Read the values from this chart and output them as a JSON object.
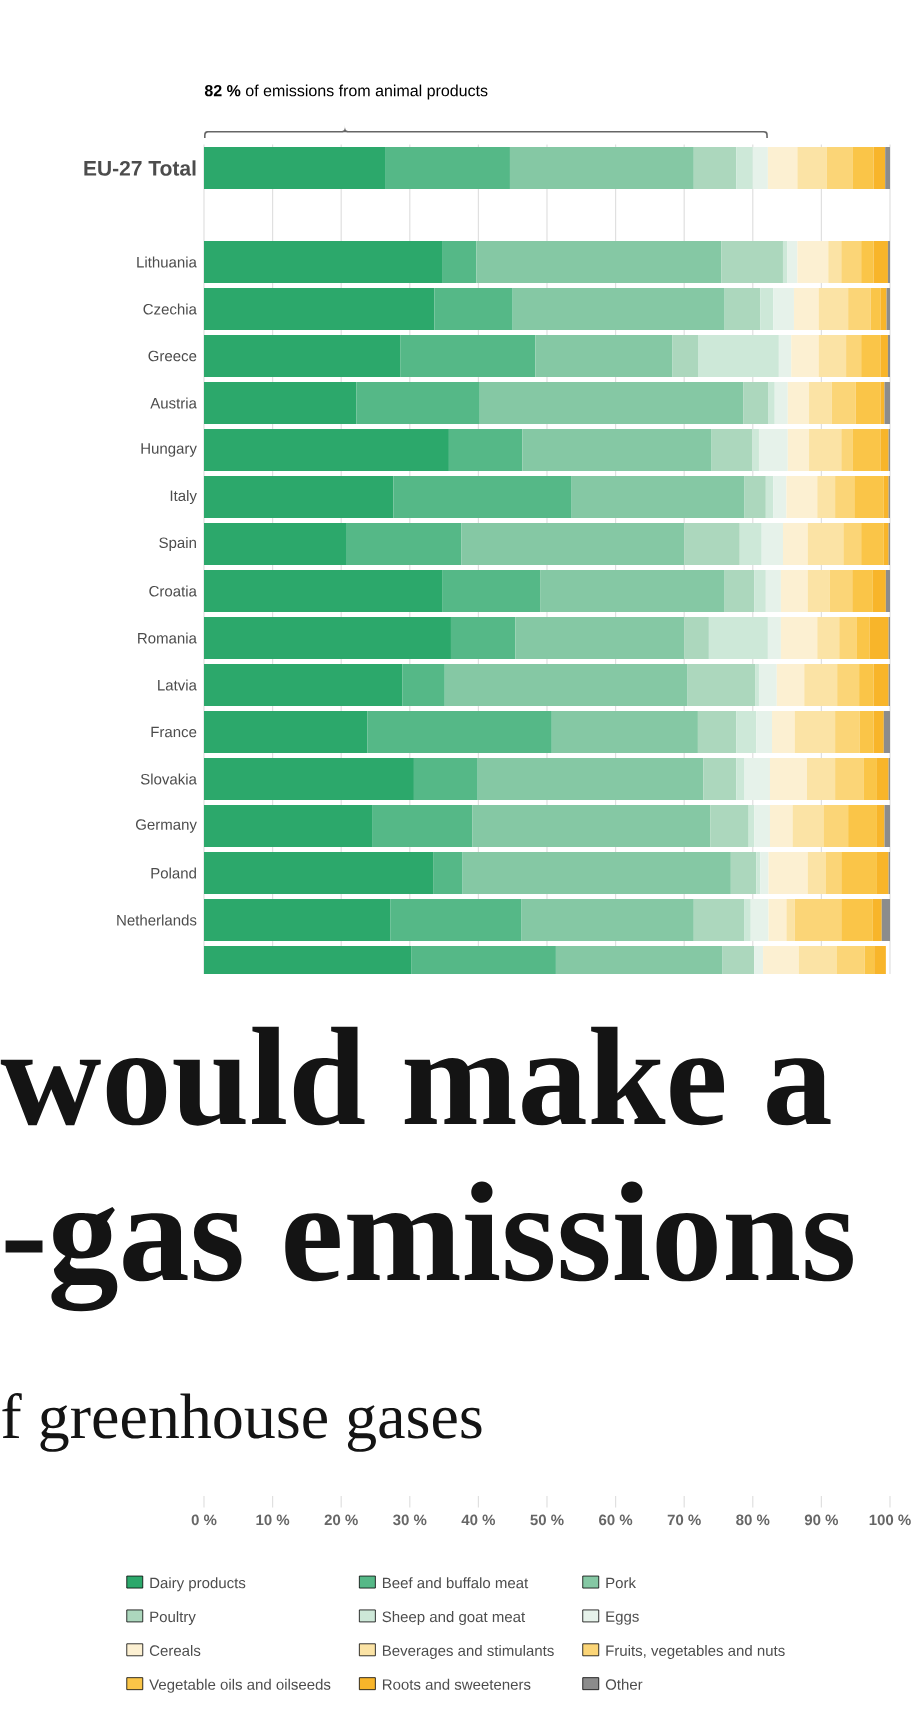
{
  "chart_data": {
    "type": "bar",
    "orientation": "horizontal",
    "stacked": true,
    "grid": "x",
    "legend": "bottom",
    "categories": [
      "EU-27 Total",
      null,
      "Lithuania",
      "Czechia",
      "Greece",
      "Austria",
      "Hungary",
      "Italy",
      "Spain",
      "Croatia",
      "Romania",
      "Latvia",
      "France",
      "Slovakia",
      "Germany",
      "Poland",
      "Netherlands",
      null,
      null,
      null,
      null,
      null,
      null,
      null,
      null,
      null,
      null,
      null,
      null
    ],
    "xlim": [
      0,
      100
    ],
    "xticks": [
      {
        "value": 0,
        "label": "0 %"
      },
      {
        "value": 10,
        "label": "10 %"
      },
      {
        "value": 20,
        "label": "20 %"
      },
      {
        "value": 30,
        "label": "30 %"
      },
      {
        "value": 40,
        "label": "40 %"
      },
      {
        "value": 50,
        "label": "50 %"
      },
      {
        "value": 60,
        "label": "60 %"
      },
      {
        "value": 70,
        "label": "70 %"
      },
      {
        "value": 80,
        "label": "80 %"
      },
      {
        "value": 90,
        "label": "90 %"
      },
      {
        "value": 100,
        "label": "100 %"
      }
    ],
    "annotations": [
      "**82 %** of emissions from animal products",
      "would make a",
      "-gas emissions",
      "f greenhouse gases"
    ],
    "series": [
      {
        "name": "Dairy products",
        "color": "#2ca86b",
        "values": [
          26.5,
          null,
          34.7,
          33.6,
          28.6,
          22.2,
          35.7,
          27.6,
          20.7,
          34.8,
          36.0,
          28.9,
          23.8,
          30.6,
          24.6,
          33.4,
          27.2,
          30.2,
          null,
          null,
          null,
          null,
          null,
          null,
          null,
          null,
          null,
          null,
          null
        ]
      },
      {
        "name": "Beef and buffalo meat",
        "color": "#55b887",
        "values": [
          18.1,
          null,
          5.0,
          11.4,
          19.7,
          18.0,
          10.7,
          26.0,
          16.8,
          14.2,
          9.4,
          6.2,
          26.9,
          9.3,
          14.5,
          4.3,
          19.1,
          21.1,
          null,
          null,
          null,
          null,
          null,
          null,
          null,
          null,
          null,
          null,
          null
        ]
      },
      {
        "name": "Pork",
        "color": "#85c8a4",
        "values": [
          26.8,
          null,
          35.7,
          30.9,
          20.0,
          38.4,
          27.6,
          25.2,
          32.5,
          26.9,
          24.6,
          35.4,
          21.3,
          32.9,
          34.7,
          39.1,
          25.1,
          24.3,
          null,
          null,
          null,
          null,
          null,
          null,
          null,
          null,
          null,
          null,
          null
        ]
      },
      {
        "name": "Poultry",
        "color": "#acd7bd",
        "values": [
          6.2,
          null,
          9.0,
          5.2,
          3.8,
          3.7,
          5.9,
          3.1,
          8.1,
          4.3,
          3.6,
          9.9,
          5.6,
          4.8,
          5.6,
          3.7,
          7.4,
          4.6,
          null,
          null,
          null,
          null,
          null,
          null,
          null,
          null,
          null,
          null,
          null
        ]
      },
      {
        "name": "Sheep and goat meat",
        "color": "#cde8d8",
        "values": [
          2.4,
          null,
          0.6,
          1.9,
          11.7,
          0.9,
          1.0,
          1.1,
          3.2,
          1.7,
          8.6,
          0.5,
          2.9,
          1.2,
          0.8,
          0.6,
          0.9,
          null,
          null,
          null,
          null,
          null,
          null,
          null,
          null,
          null,
          null,
          null,
          null
        ]
      },
      {
        "name": "Eggs",
        "color": "#e6f2ea",
        "values": [
          2.2,
          null,
          1.5,
          3.0,
          1.8,
          1.9,
          4.2,
          1.9,
          3.1,
          2.2,
          1.9,
          2.6,
          2.3,
          3.7,
          2.3,
          1.2,
          2.6,
          1.3,
          null,
          null,
          null,
          null,
          null,
          null,
          null,
          null,
          null,
          null,
          null
        ]
      },
      {
        "name": "Cereals",
        "color": "#fcf0d2",
        "values": [
          4.3,
          null,
          4.5,
          3.6,
          4.0,
          3.1,
          3.1,
          4.5,
          3.6,
          3.9,
          5.3,
          4.0,
          3.3,
          5.4,
          3.3,
          5.7,
          2.6,
          5.2,
          null,
          null,
          null,
          null,
          null,
          null,
          null,
          null,
          null,
          null,
          null
        ]
      },
      {
        "name": "Beverages and stimulants",
        "color": "#fbe3a5",
        "values": [
          4.3,
          null,
          1.9,
          4.3,
          4.0,
          3.3,
          4.7,
          2.6,
          5.2,
          3.2,
          3.2,
          4.8,
          5.9,
          4.1,
          4.5,
          2.6,
          1.2,
          5.5,
          null,
          null,
          null,
          null,
          null,
          null,
          null,
          null,
          null,
          null,
          null
        ]
      },
      {
        "name": "Fruits, vegetables and nuts",
        "color": "#fbd577",
        "values": [
          3.8,
          null,
          2.9,
          3.3,
          2.2,
          3.5,
          1.7,
          2.8,
          2.6,
          3.3,
          2.5,
          3.2,
          3.6,
          4.2,
          3.6,
          2.3,
          6.8,
          4.1,
          null,
          null,
          null,
          null,
          null,
          null,
          null,
          null,
          null,
          null,
          null
        ]
      },
      {
        "name": "Vegetable oils and oilseeds",
        "color": "#fac548",
        "values": [
          3.0,
          null,
          1.8,
          1.4,
          2.8,
          3.6,
          4.0,
          4.3,
          3.3,
          3.0,
          1.9,
          2.1,
          2.0,
          1.9,
          4.2,
          5.2,
          4.6,
          1.4,
          null,
          null,
          null,
          null,
          null,
          null,
          null,
          null,
          null,
          null,
          null
        ]
      },
      {
        "name": "Roots and sweeteners",
        "color": "#f8b52a",
        "values": [
          1.7,
          null,
          2.1,
          0.9,
          1.1,
          0.6,
          1.2,
          0.7,
          0.7,
          1.9,
          2.8,
          2.2,
          1.5,
          1.7,
          1.1,
          1.7,
          1.3,
          1.7,
          null,
          null,
          null,
          null,
          null,
          null,
          null,
          null,
          null,
          null,
          null
        ]
      },
      {
        "name": "Other",
        "color": "#8c8c8c",
        "values": [
          0.7,
          null,
          0.3,
          0.5,
          0.3,
          0.8,
          0.2,
          0.2,
          0.2,
          0.6,
          0.2,
          0.2,
          0.9,
          0.2,
          0.8,
          0.2,
          1.2,
          null,
          null,
          null,
          null,
          null,
          null,
          null,
          null,
          null,
          null,
          null,
          null
        ]
      }
    ]
  }
}
